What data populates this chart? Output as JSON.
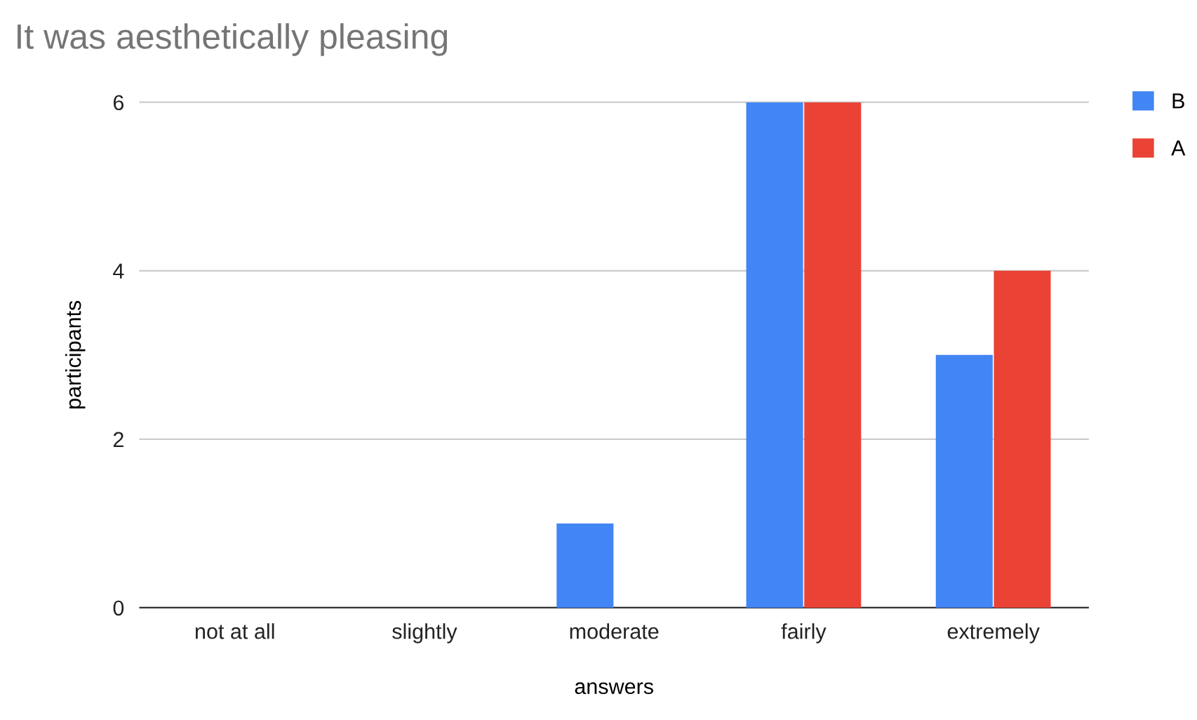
{
  "chart_data": {
    "type": "bar",
    "title": "It was aesthetically pleasing",
    "xlabel": "answers",
    "ylabel": "participants",
    "categories": [
      "not at all",
      "slightly",
      "moderate",
      "fairly",
      "extremely"
    ],
    "series": [
      {
        "name": "B",
        "color": "#4285f4",
        "values": [
          0,
          0,
          1,
          6,
          3
        ]
      },
      {
        "name": "A",
        "color": "#ea4335",
        "values": [
          0,
          0,
          0,
          6,
          4
        ]
      }
    ],
    "ylim": [
      0,
      6
    ],
    "yticks": [
      0,
      2,
      4,
      6
    ],
    "grid": "y",
    "legend": "top right"
  }
}
